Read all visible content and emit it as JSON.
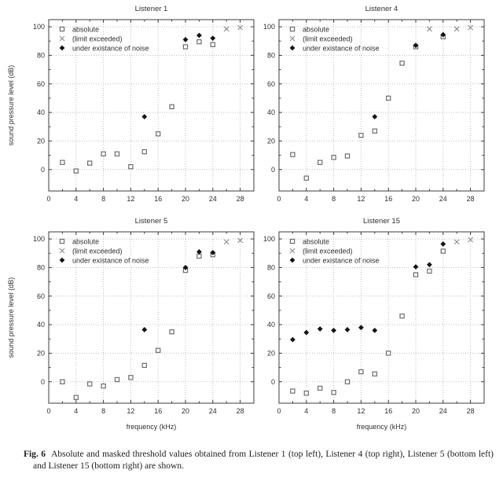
{
  "figure": {
    "caption_label": "Fig. 6",
    "caption_text": "Absolute and masked threshold values obtained from Listener 1 (top left), Listener 4 (top right), Listener 5 (bottom left) and Listener 15 (bottom right) are shown."
  },
  "legend": {
    "position": "top-left-inside",
    "items": [
      {
        "label": "absolute",
        "marker": "open-square"
      },
      {
        "label": "(limit exceeded)",
        "marker": "x-cross"
      },
      {
        "label": "under existance of noise",
        "marker": "filled-diamond"
      }
    ]
  },
  "colors": {
    "background": "#ffffff",
    "axis": "#3c3c3c",
    "grid": "#bfbfbf",
    "text": "#2f2f2f",
    "marker_square": "#6e6e6e",
    "marker_cross": "#8a8a8a",
    "marker_diamond": "#141414"
  },
  "chart_data": [
    {
      "type": "scatter",
      "title": "Listener 1",
      "position": "top-left",
      "xlabel": "",
      "ylabel": "sound pressure level (dB)",
      "xlim": [
        0,
        30
      ],
      "ylim": [
        -15,
        105
      ],
      "xticks": [
        0,
        4,
        8,
        12,
        16,
        20,
        24,
        28
      ],
      "yticks": [
        0,
        20,
        40,
        60,
        80,
        100
      ],
      "grid": true,
      "series": [
        {
          "name": "absolute",
          "marker": "open-square",
          "points": [
            [
              2,
              5
            ],
            [
              4,
              -1
            ],
            [
              6,
              4.5
            ],
            [
              8,
              11
            ],
            [
              10,
              11
            ],
            [
              12,
              2
            ],
            [
              14,
              12.5
            ],
            [
              16,
              25
            ],
            [
              18,
              44
            ],
            [
              20,
              86
            ],
            [
              22,
              89.5
            ],
            [
              24,
              87.5
            ]
          ]
        },
        {
          "name": "(limit exceeded)",
          "marker": "x-cross",
          "points": [
            [
              26,
              98.5
            ],
            [
              28,
              99.5
            ]
          ]
        },
        {
          "name": "under existance of noise",
          "marker": "filled-diamond",
          "points": [
            [
              14,
              37
            ],
            [
              20,
              91
            ],
            [
              22,
              94
            ],
            [
              24,
              92
            ]
          ]
        }
      ]
    },
    {
      "type": "scatter",
      "title": "Listener 4",
      "position": "top-right",
      "xlabel": "",
      "ylabel": "",
      "xlim": [
        0,
        30
      ],
      "ylim": [
        -15,
        105
      ],
      "xticks": [
        0,
        4,
        8,
        12,
        16,
        20,
        24,
        28
      ],
      "yticks": [
        0,
        20,
        40,
        60,
        80,
        100
      ],
      "grid": true,
      "series": [
        {
          "name": "absolute",
          "marker": "open-square",
          "points": [
            [
              2,
              10.5
            ],
            [
              4,
              -6
            ],
            [
              6,
              5
            ],
            [
              8,
              8.5
            ],
            [
              10,
              9.5
            ],
            [
              12,
              24
            ],
            [
              14,
              27
            ],
            [
              16,
              50
            ],
            [
              18,
              74.5
            ],
            [
              20,
              86
            ],
            [
              24,
              93
            ]
          ]
        },
        {
          "name": "(limit exceeded)",
          "marker": "x-cross",
          "points": [
            [
              22,
              98.5
            ],
            [
              26,
              98.5
            ],
            [
              28,
              99.5
            ]
          ]
        },
        {
          "name": "under existance of noise",
          "marker": "filled-diamond",
          "points": [
            [
              14,
              37
            ],
            [
              20,
              87
            ],
            [
              24,
              94.5
            ]
          ]
        }
      ]
    },
    {
      "type": "scatter",
      "title": "Listener 5",
      "position": "bottom-left",
      "xlabel": "frequency (kHz)",
      "ylabel": "sound pressure level (dB)",
      "xlim": [
        0,
        30
      ],
      "ylim": [
        -15,
        105
      ],
      "xticks": [
        0,
        4,
        8,
        12,
        16,
        20,
        24,
        28
      ],
      "yticks": [
        0,
        20,
        40,
        60,
        80,
        100
      ],
      "grid": true,
      "series": [
        {
          "name": "absolute",
          "marker": "open-square",
          "points": [
            [
              2,
              0
            ],
            [
              4,
              -11
            ],
            [
              6,
              -1.5
            ],
            [
              8,
              -3
            ],
            [
              10,
              1.5
            ],
            [
              12,
              3
            ],
            [
              14,
              11.5
            ],
            [
              16,
              22
            ],
            [
              18,
              35
            ],
            [
              20,
              78
            ],
            [
              22,
              88
            ],
            [
              24,
              89
            ]
          ]
        },
        {
          "name": "(limit exceeded)",
          "marker": "x-cross",
          "points": [
            [
              26,
              98
            ],
            [
              28,
              99
            ]
          ]
        },
        {
          "name": "under existance of noise",
          "marker": "filled-diamond",
          "points": [
            [
              14,
              36.5
            ],
            [
              20,
              80
            ],
            [
              22,
              91
            ],
            [
              24,
              90.5
            ]
          ]
        }
      ]
    },
    {
      "type": "scatter",
      "title": "Listener 15",
      "position": "bottom-right",
      "xlabel": "frequency (kHz)",
      "ylabel": "",
      "xlim": [
        0,
        30
      ],
      "ylim": [
        -15,
        105
      ],
      "xticks": [
        0,
        4,
        8,
        12,
        16,
        20,
        24,
        28
      ],
      "yticks": [
        0,
        20,
        40,
        60,
        80,
        100
      ],
      "grid": true,
      "series": [
        {
          "name": "absolute",
          "marker": "open-square",
          "points": [
            [
              2,
              -6.5
            ],
            [
              4,
              -8
            ],
            [
              6,
              -4.5
            ],
            [
              8,
              -7.5
            ],
            [
              10,
              0
            ],
            [
              12,
              7
            ],
            [
              14,
              5.5
            ],
            [
              16,
              20
            ],
            [
              18,
              46
            ],
            [
              20,
              75
            ],
            [
              22,
              77.5
            ],
            [
              24,
              91.5
            ]
          ]
        },
        {
          "name": "(limit exceeded)",
          "marker": "x-cross",
          "points": [
            [
              26,
              98
            ],
            [
              28,
              99.5
            ]
          ]
        },
        {
          "name": "under existance of noise",
          "marker": "filled-diamond",
          "points": [
            [
              2,
              29.5
            ],
            [
              4,
              34.5
            ],
            [
              6,
              37
            ],
            [
              8,
              36
            ],
            [
              10,
              36.5
            ],
            [
              12,
              38
            ],
            [
              14,
              36
            ],
            [
              20,
              80.5
            ],
            [
              22,
              82
            ],
            [
              24,
              96.5
            ]
          ]
        }
      ]
    }
  ]
}
